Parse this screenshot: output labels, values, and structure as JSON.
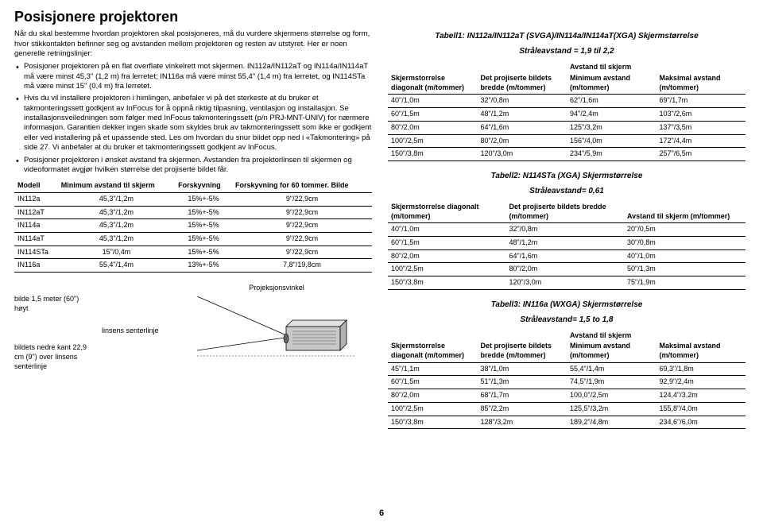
{
  "title": "Posisjonere projektoren",
  "intro": "Når du skal bestemme hvordan projektoren skal posisjoneres, må du vurdere skjermens størrelse og form, hvor stikkontakten befinner seg og avstanden mellom projektoren og resten av utstyret. Her er noen generelle retningslinjer:",
  "bullets": [
    "Posisjoner projektoren på en flat overflate vinkelrett mot skjermen. IN112a/IN112aT og IN114a/IN114aT må være minst 45,3\" (1,2 m) fra lerretet; IN116a må være minst 55,4\" (1,4 m) fra lerretet, og IN114STa må være minst 15\" (0,4 m) fra lerretet.",
    "Hvis du vil installere projektoren i himlingen, anbefaler vi på det sterkeste at du bruker et takmonteringssett godkjent av InFocus for å oppnå riktig tilpasning, ventilasjon og installasjon. Se installasjonsveiledningen som følger med InFocus takmonteringssett (p/n PRJ-MNT-UNIV) for nærmere informasjon. Garantien dekker ingen skade som skyldes bruk av takmonteringssett som ikke er godkjent eller ved installering på et upassende sted. Les om hvordan du snur bildet opp ned i «Takmontering» på side 27. Vi anbefaler at du bruker et takmonteringssett godkjent av InFocus.",
    "Posisjoner projektoren i ønsket avstand fra skjermen. Avstanden fra projektorlinsen til skjermen og videoformatet avgjør hvilken størrelse det projiserte bildet får."
  ],
  "modelsTable": {
    "headers": [
      "Modell",
      "Minimum avstand til skjerm",
      "Forskyvning",
      "Forskyvning for 60 tommer. Bilde"
    ],
    "rows": [
      [
        "IN112a",
        "45,3\"/1,2m",
        "15%+-5%",
        "9\"/22,9cm"
      ],
      [
        "IN112aT",
        "45,3\"/1,2m",
        "15%+-5%",
        "9\"/22,9cm"
      ],
      [
        "IN114a",
        "45,3\"/1,2m",
        "15%+-5%",
        "9\"/22,9cm"
      ],
      [
        "IN114aT",
        "45,3\"/1,2m",
        "15%+-5%",
        "9\"/22,9cm"
      ],
      [
        "IN114STa",
        "15\"/0,4m",
        "15%+-5%",
        "9\"/22,9cm"
      ],
      [
        "IN116a",
        "55,4\"/1,4m",
        "13%+-5%",
        "7,8\"/19,8cm"
      ]
    ]
  },
  "diagram": {
    "label_top": "bilde 1,5 meter (60\") høyt",
    "label_bottom": "bildets nedre kant 22,9 cm (9\") over linsens senterlinje",
    "label_mid": "linsens senterlinje",
    "label_angle": "Projeksjonsvinkel"
  },
  "table1": {
    "title": "Tabell1: IN112a/IN112aT (SVGA)/IN114a/IN114aT(XGA) Skjermstørrelse",
    "subtitle": "Stråleavstand = 1,9 til 2,2",
    "header_group": "Avstand til skjerm",
    "headers": [
      "Skjermstorrelse diagonalt (m/tommer)",
      "Det projiserte bildets bredde (m/tommer)",
      "Minimum avstand (m/tommer)",
      "Maksimal avstand (m/tommer)"
    ],
    "rows": [
      [
        "40\"/1,0m",
        "32\"/0,8m",
        "62\"/1,6m",
        "69\"/1,7m"
      ],
      [
        "60\"/1,5m",
        "48\"/1,2m",
        "94\"/2,4m",
        "103\"/2,6m"
      ],
      [
        "80\"/2,0m",
        "64\"/1,6m",
        "125\"/3,2m",
        "137\"/3,5m"
      ],
      [
        "100\"/2,5m",
        "80\"/2,0m",
        "156\"/4,0m",
        "172\"/4,4m"
      ],
      [
        "150\"/3,8m",
        "120\"/3,0m",
        "234\"/5,9m",
        "257\"/6,5m"
      ]
    ]
  },
  "table2": {
    "title": "Tabell2: N114STa (XGA) Skjermstørrelse",
    "subtitle": "Stråleavstand= 0,61",
    "headers": [
      "Skjermstorrelse diagonalt (m/tommer)",
      "Det projiserte bildets bredde (m/tommer)",
      "Avstand til skjerm (m/tommer)"
    ],
    "rows": [
      [
        "40\"/1,0m",
        "32\"/0,8m",
        "20\"/0,5m"
      ],
      [
        "60\"/1,5m",
        "48\"/1,2m",
        "30\"/0,8m"
      ],
      [
        "80\"/2,0m",
        "64\"/1,6m",
        "40\"/1,0m"
      ],
      [
        "100\"/2,5m",
        "80\"/2,0m",
        "50\"/1,3m"
      ],
      [
        "150\"/3,8m",
        "120\"/3,0m",
        "75\"/1,9m"
      ]
    ]
  },
  "table3": {
    "title": "Tabell3: IN116a (WXGA) Skjermstørrelse",
    "subtitle": "Stråleavstand= 1,5 to 1,8",
    "header_group": "Avstand til skjerm",
    "headers": [
      "Skjermstorrelse diagonalt (m/tommer)",
      "Det projiserte bildets bredde (m/tommer)",
      "Minimum avstand (m/tommer)",
      "Maksimal avstand (m/tommer)"
    ],
    "rows": [
      [
        "45\"/1,1m",
        "38\"/1,0m",
        "55,4\"/1,4m",
        "69,3\"/1,8m"
      ],
      [
        "60\"/1,5m",
        "51\"/1,3m",
        "74,5\"/1,9m",
        "92,9\"/2,4m"
      ],
      [
        "80\"/2,0m",
        "68\"/1,7m",
        "100,0\"/2,5m",
        "124,4\"/3,2m"
      ],
      [
        "100\"/2,5m",
        "85\"/2,2m",
        "125,5\"/3,2m",
        "155,8\"/4,0m"
      ],
      [
        "150\"/3,8m",
        "128\"/3,2m",
        "189,2\"/4,8m",
        "234,6\"/6,0m"
      ]
    ]
  },
  "pagenum": "6"
}
